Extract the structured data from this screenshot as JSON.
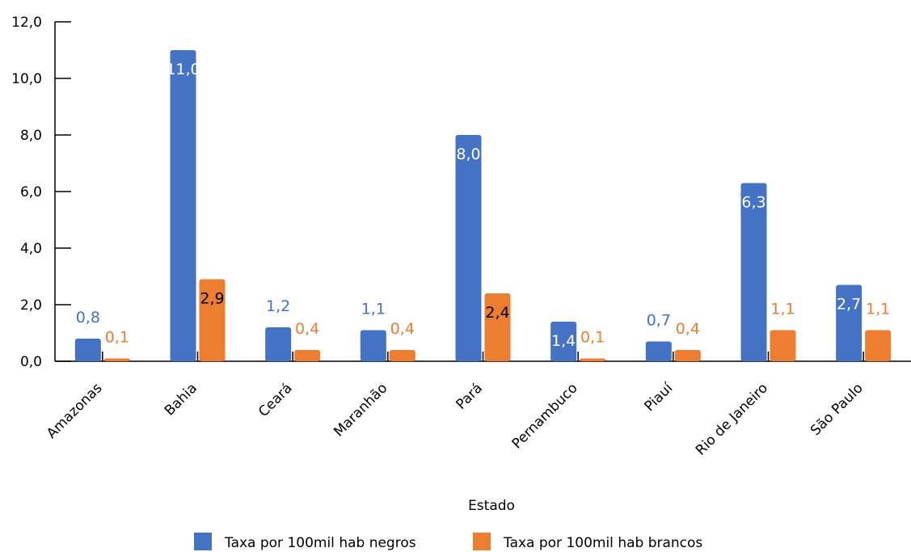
{
  "chart_data": {
    "type": "bar",
    "xlabel": "Estado",
    "ylabel": "",
    "ylim": [
      0,
      12
    ],
    "yticks": [
      "0,0",
      "2,0",
      "4,0",
      "6,0",
      "8,0",
      "10,0",
      "12,0"
    ],
    "categories": [
      "Amazonas",
      "Bahia",
      "Ceará",
      "Maranhão",
      "Pará",
      "Pernambuco",
      "Piauí",
      "Rio de Janeiro",
      "São Paulo"
    ],
    "series": [
      {
        "name": "Taxa por 100mil hab negros",
        "color": "#4472C4",
        "values": [
          0.8,
          11.0,
          1.2,
          1.1,
          8.0,
          1.4,
          0.7,
          6.3,
          2.7
        ],
        "labels": [
          "0,8",
          "11,0",
          "1,2",
          "1,1",
          "8,0",
          "1,4",
          "0,7",
          "6,3",
          "2,7"
        ]
      },
      {
        "name": "Taxa por 100mil hab brancos",
        "color": "#ED7D31",
        "values": [
          0.1,
          2.9,
          0.4,
          0.4,
          2.4,
          0.1,
          0.4,
          1.1,
          1.1
        ],
        "labels": [
          "0,1",
          "2,9",
          "0,4",
          "0,4",
          "2,4",
          "0,1",
          "0,4",
          "1,1",
          "1,1"
        ]
      }
    ],
    "grid": false,
    "legend_position": "bottom"
  }
}
